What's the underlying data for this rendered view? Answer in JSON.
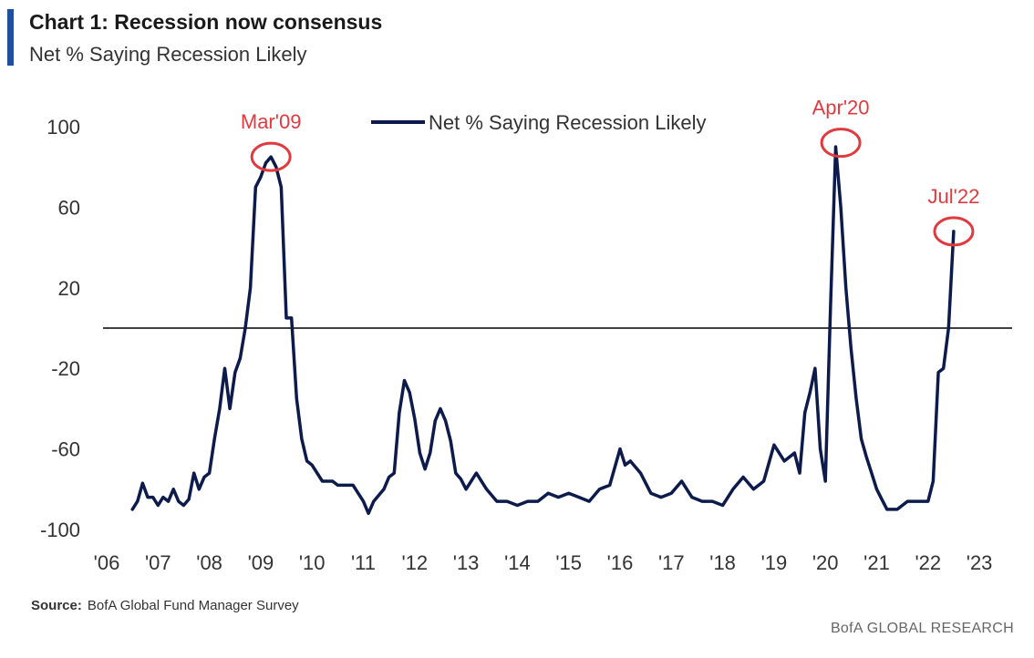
{
  "header": {
    "title": "Chart 1: Recession now consensus",
    "subtitle": "Net % Saying Recession Likely"
  },
  "footer": {
    "source_label": "Source:",
    "source_text": "BofA Global Fund Manager Survey",
    "brand": "BofA GLOBAL RESEARCH"
  },
  "colors": {
    "series": "#0d1b4c",
    "annotation": "#e03a3e",
    "zero_line": "#000000",
    "accent": "#1f4e9c"
  },
  "chart_data": {
    "type": "line",
    "title": "Chart 1: Recession now consensus",
    "subtitle": "Net % Saying Recession Likely",
    "xlabel": "",
    "ylabel": "",
    "ylim": [
      -100,
      120
    ],
    "xlim": [
      2006.0,
      2024.0
    ],
    "yticks": [
      100,
      60,
      20,
      -20,
      -60,
      -100
    ],
    "xticks": [
      {
        "value": 2006,
        "label": "'06"
      },
      {
        "value": 2007,
        "label": "'07"
      },
      {
        "value": 2008,
        "label": "'08"
      },
      {
        "value": 2009,
        "label": "'09"
      },
      {
        "value": 2010,
        "label": "'10"
      },
      {
        "value": 2011,
        "label": "'11"
      },
      {
        "value": 2012,
        "label": "'12"
      },
      {
        "value": 2013,
        "label": "'13"
      },
      {
        "value": 2014,
        "label": "'14"
      },
      {
        "value": 2015,
        "label": "'15"
      },
      {
        "value": 2016,
        "label": "'16"
      },
      {
        "value": 2017,
        "label": "'17"
      },
      {
        "value": 2018,
        "label": "'18"
      },
      {
        "value": 2019,
        "label": "'19"
      },
      {
        "value": 2020,
        "label": "'20"
      },
      {
        "value": 2021,
        "label": "'21"
      },
      {
        "value": 2022,
        "label": "'22"
      },
      {
        "value": 2023,
        "label": "'23"
      }
    ],
    "grid": false,
    "zero_line": true,
    "legend": {
      "position": "top-center"
    },
    "series": [
      {
        "name": "Net % Saying Recession Likely",
        "x": [
          2006.5,
          2006.6,
          2006.7,
          2006.8,
          2006.9,
          2007.0,
          2007.1,
          2007.2,
          2007.3,
          2007.4,
          2007.5,
          2007.6,
          2007.7,
          2007.8,
          2007.9,
          2008.0,
          2008.1,
          2008.2,
          2008.3,
          2008.4,
          2008.5,
          2008.6,
          2008.7,
          2008.8,
          2008.9,
          2009.0,
          2009.1,
          2009.2,
          2009.3,
          2009.4,
          2009.5,
          2009.6,
          2009.7,
          2009.8,
          2009.9,
          2010.0,
          2010.2,
          2010.4,
          2010.5,
          2010.6,
          2010.8,
          2011.0,
          2011.1,
          2011.2,
          2011.4,
          2011.5,
          2011.6,
          2011.7,
          2011.8,
          2011.9,
          2012.0,
          2012.1,
          2012.2,
          2012.3,
          2012.4,
          2012.5,
          2012.6,
          2012.7,
          2012.8,
          2012.9,
          2013.0,
          2013.2,
          2013.4,
          2013.6,
          2013.8,
          2014.0,
          2014.2,
          2014.4,
          2014.6,
          2014.8,
          2015.0,
          2015.2,
          2015.4,
          2015.6,
          2015.8,
          2016.0,
          2016.1,
          2016.2,
          2016.4,
          2016.6,
          2016.8,
          2017.0,
          2017.2,
          2017.4,
          2017.6,
          2017.8,
          2018.0,
          2018.2,
          2018.4,
          2018.6,
          2018.8,
          2019.0,
          2019.2,
          2019.4,
          2019.5,
          2019.6,
          2019.7,
          2019.8,
          2019.9,
          2020.0,
          2020.1,
          2020.2,
          2020.3,
          2020.4,
          2020.5,
          2020.6,
          2020.7,
          2020.8,
          2020.9,
          2021.0,
          2021.1,
          2021.2,
          2021.4,
          2021.6,
          2021.8,
          2022.0,
          2022.1,
          2022.2,
          2022.3,
          2022.4,
          2022.5
        ],
        "values": [
          -90,
          -86,
          -77,
          -84,
          -84,
          -88,
          -84,
          -86,
          -80,
          -86,
          -88,
          -85,
          -72,
          -80,
          -74,
          -72,
          -55,
          -40,
          -20,
          -40,
          -22,
          -15,
          0,
          20,
          70,
          75,
          82,
          85,
          80,
          70,
          5,
          5,
          -35,
          -55,
          -66,
          -68,
          -76,
          -76,
          -78,
          -78,
          -78,
          -86,
          -92,
          -86,
          -80,
          -74,
          -72,
          -42,
          -26,
          -32,
          -45,
          -62,
          -70,
          -62,
          -46,
          -40,
          -46,
          -56,
          -72,
          -75,
          -80,
          -72,
          -80,
          -86,
          -86,
          -88,
          -86,
          -86,
          -82,
          -84,
          -82,
          -84,
          -86,
          -80,
          -78,
          -60,
          -68,
          -66,
          -72,
          -82,
          -84,
          -82,
          -76,
          -84,
          -86,
          -86,
          -88,
          -80,
          -74,
          -80,
          -76,
          -58,
          -66,
          -62,
          -72,
          -42,
          -32,
          -20,
          -60,
          -76,
          10,
          90,
          60,
          20,
          -10,
          -35,
          -55,
          -64,
          -72,
          -80,
          -85,
          -90,
          -90,
          -86,
          -86,
          -86,
          -76,
          -22,
          -20,
          0,
          48
        ]
      }
    ],
    "annotations": [
      {
        "label": "Mar'09",
        "x": 2009.2,
        "y": 85
      },
      {
        "label": "Apr'20",
        "x": 2020.3,
        "y": 92
      },
      {
        "label": "Jul'22",
        "x": 2022.5,
        "y": 48
      }
    ]
  }
}
